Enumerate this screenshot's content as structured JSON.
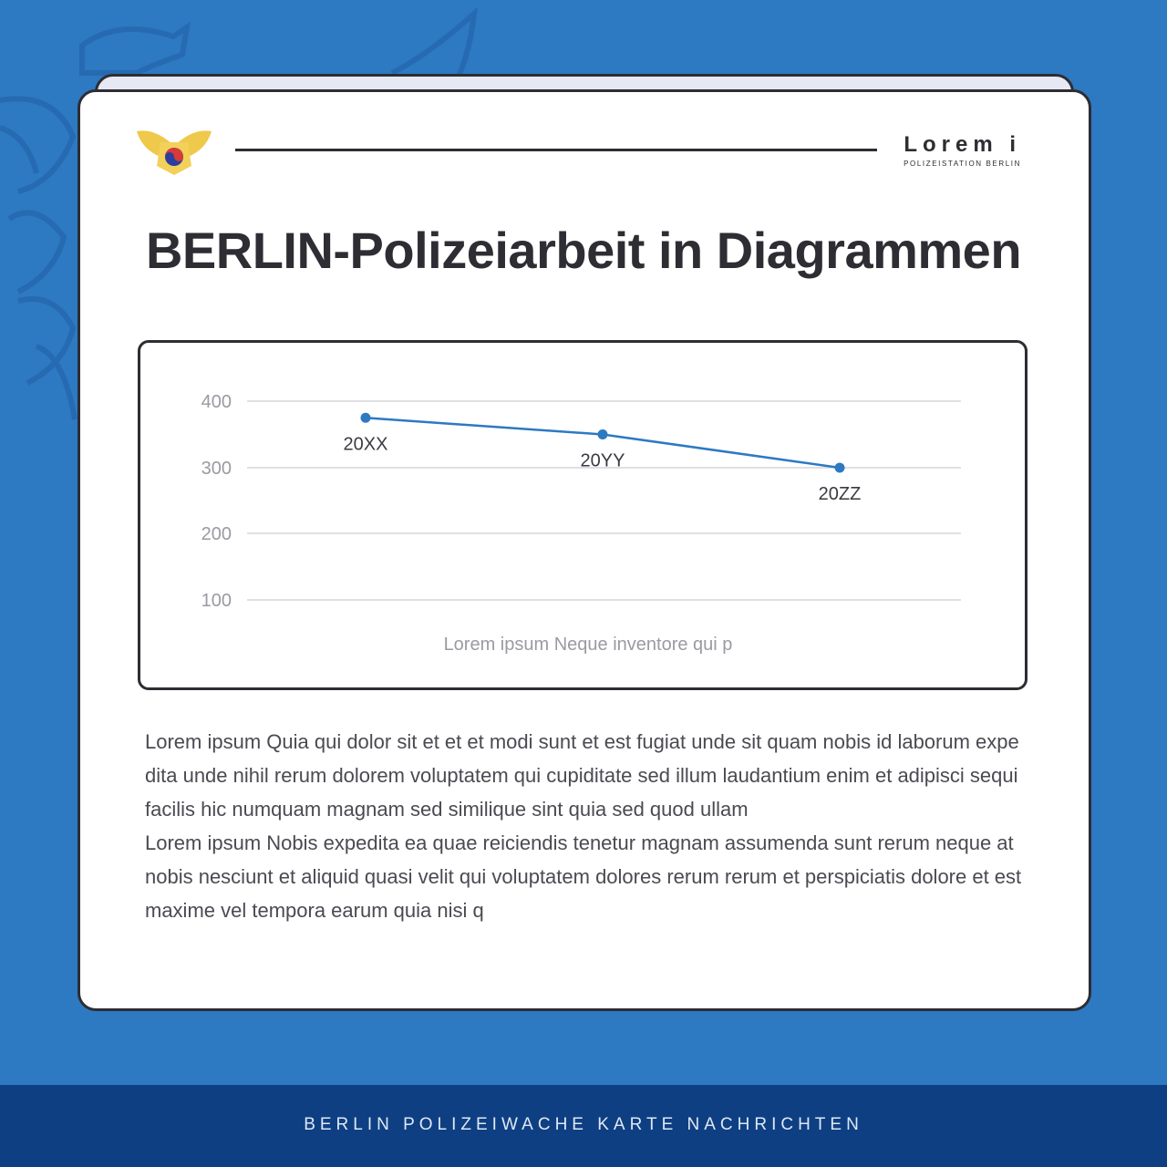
{
  "brand": {
    "name": "Lorem i",
    "subtitle": "POLIZEISTATION BERLIN"
  },
  "page": {
    "title": "BERLIN-Polizeiarbeit in Diagrammen",
    "body": "Lorem ipsum Quia qui dolor sit et et et modi sunt et est fugiat unde sit quam nobis id laborum expedita unde nihil rerum dolorem voluptatem qui cupiditate sed illum laudantium enim et adipisci sequi facilis hic numquam magnam sed similique sint quia sed quod ullam\nLorem ipsum Nobis expedita ea quae reiciendis tenetur magnam assumenda sunt rerum neque at nobis nesciunt et aliquid quasi velit qui voluptatem dolores rerum rerum et perspiciatis dolore et est maxime vel tempora earum quia nisi q"
  },
  "footer": {
    "text": "BERLIN POLIZEIWACHE KARTE NACHRICHTEN"
  },
  "colors": {
    "background": "#2d79c2",
    "footer": "#0e3f82",
    "line": "#2d79c2",
    "ink": "#2d2d33"
  },
  "icons": [
    "police-emblem-icon"
  ],
  "chart_data": {
    "type": "line",
    "title": "",
    "xlabel": "Lorem ipsum Neque inventore qui p",
    "ylabel": "",
    "categories": [
      "20XX",
      "20YY",
      "20ZZ"
    ],
    "series": [
      {
        "values": [
          375,
          350,
          300
        ]
      }
    ],
    "yticks": [
      100,
      200,
      300,
      400
    ],
    "ylim": [
      100,
      400
    ],
    "grid": true,
    "legend": "none"
  }
}
